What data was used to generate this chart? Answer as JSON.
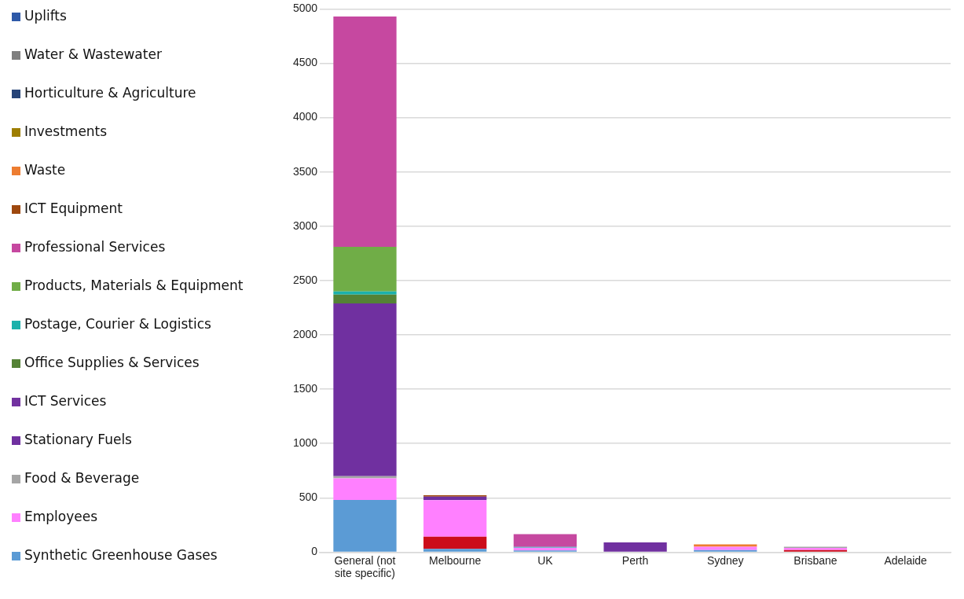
{
  "chart_data": {
    "type": "bar",
    "stacked": true,
    "legend": "left",
    "grid": "y",
    "categories": [
      "General (not site specific)",
      "Melbourne",
      "UK",
      "Perth",
      "Sydney",
      "Brisbane",
      "Adelaide"
    ],
    "ylim": [
      0,
      5000
    ],
    "yticks": [
      0,
      500,
      1000,
      1500,
      2000,
      2500,
      3000,
      3500,
      4000,
      4500,
      5000
    ],
    "series": [
      {
        "name": "Synthetic Greenhouse Gases",
        "color": "#5b9bd5",
        "values": [
          480,
          30,
          15,
          null,
          20,
          null,
          null
        ]
      },
      {
        "color": "#cc0d1a",
        "values": [
          null,
          113,
          null,
          null,
          null,
          20,
          null
        ]
      },
      {
        "name": "Employees",
        "color": "#ff80ff",
        "values": [
          200,
          335,
          25,
          null,
          30,
          19,
          null
        ]
      },
      {
        "name": "Food & Beverage",
        "color": "#a5a5a5",
        "values": [
          20,
          null,
          null,
          null,
          null,
          11,
          null
        ]
      },
      {
        "name": "Stationary Fuels",
        "color": "#7030a0",
        "values": [
          1590,
          34,
          null,
          90,
          null,
          null,
          null
        ]
      },
      {
        "name": "ICT Services",
        "color": "#7232a0",
        "values": [
          null,
          null,
          null,
          null,
          null,
          null,
          null
        ]
      },
      {
        "name": "Office Supplies & Services",
        "color": "#548235",
        "values": [
          80,
          null,
          null,
          null,
          null,
          null,
          null
        ]
      },
      {
        "name": "Postage, Courier & Logistics",
        "color": "#1bb1ab",
        "values": [
          30,
          null,
          8,
          null,
          null,
          null,
          null
        ]
      },
      {
        "name": "Products, Materials & Equipment",
        "color": "#70ad47",
        "values": [
          410,
          null,
          null,
          null,
          null,
          null,
          null
        ]
      },
      {
        "name": "Professional Services",
        "color": "#c648a0",
        "values": [
          2120,
          null,
          118,
          null,
          null,
          null,
          null
        ]
      },
      {
        "name": "ICT Equipment",
        "color": "#9e480e",
        "values": [
          null,
          12,
          null,
          null,
          null,
          null,
          null
        ]
      },
      {
        "name": "Waste",
        "color": "#ed7d31",
        "values": [
          null,
          null,
          null,
          null,
          22,
          null,
          null
        ]
      },
      {
        "name": "Investments",
        "color": "#9e7e00",
        "values": [
          null,
          null,
          null,
          null,
          null,
          null,
          null
        ]
      },
      {
        "name": "Horticulture & Agriculture",
        "color": "#264478",
        "values": [
          null,
          null,
          null,
          null,
          null,
          null,
          null
        ]
      },
      {
        "name": "Water & Wastewater",
        "color": "#7f7f7f",
        "values": [
          null,
          null,
          null,
          null,
          null,
          null,
          null
        ]
      },
      {
        "name": "Uplifts",
        "color": "#2e59a8",
        "values": [
          null,
          null,
          null,
          null,
          null,
          null,
          null
        ]
      }
    ]
  }
}
